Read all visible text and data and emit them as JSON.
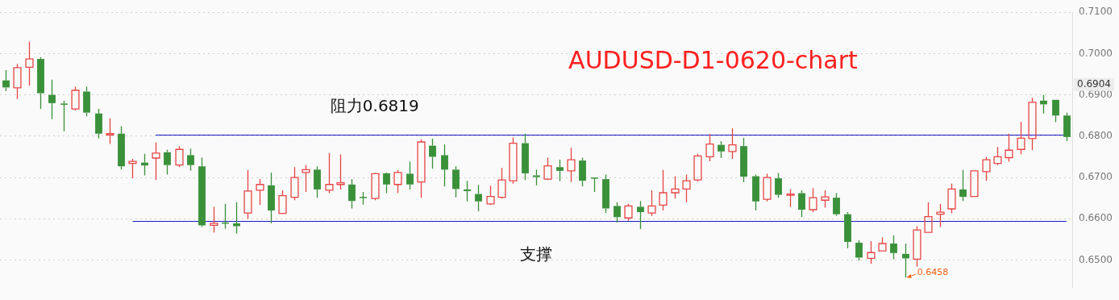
{
  "chart_data": {
    "type": "candlestick",
    "title": "AUDUSD-D1-0620-chart",
    "categories": [
      null,
      null,
      null,
      null,
      null,
      null,
      null,
      null,
      null,
      null,
      null,
      null,
      null,
      null,
      null,
      null,
      null,
      null,
      null,
      null,
      null,
      null,
      null,
      null,
      null,
      null,
      null,
      null,
      null,
      null,
      null,
      null,
      null,
      null,
      null,
      null,
      null,
      null,
      null,
      null,
      null,
      null,
      null,
      null,
      null,
      null,
      null,
      null,
      null,
      null,
      null,
      null,
      null,
      null,
      null,
      null,
      null,
      null,
      null,
      null,
      null,
      null,
      null,
      null,
      null,
      null,
      null,
      null,
      null,
      null,
      null,
      null,
      null,
      null,
      null,
      null,
      null,
      null,
      null,
      null,
      null,
      null,
      null,
      null,
      null,
      null,
      null,
      null,
      null,
      null,
      null,
      null,
      null
    ],
    "ohlc": [
      [
        0.6935,
        0.696,
        0.6909,
        0.6918
      ],
      [
        0.6917,
        0.6975,
        0.689,
        0.6966
      ],
      [
        0.6967,
        0.7029,
        0.6922,
        0.6987
      ],
      [
        0.6987,
        0.6991,
        0.6866,
        0.6904
      ],
      [
        0.69,
        0.6937,
        0.6841,
        0.688
      ],
      [
        0.6879,
        0.6886,
        0.6812,
        0.6878
      ],
      [
        0.6866,
        0.692,
        0.6862,
        0.6911
      ],
      [
        0.6908,
        0.692,
        0.6848,
        0.6857
      ],
      [
        0.6855,
        0.6866,
        0.6795,
        0.6806
      ],
      [
        0.6803,
        0.6843,
        0.6781,
        0.6806
      ],
      [
        0.6806,
        0.6824,
        0.6719,
        0.6727
      ],
      [
        0.6734,
        0.6745,
        0.6698,
        0.6739
      ],
      [
        0.6736,
        0.6757,
        0.6705,
        0.6729
      ],
      [
        0.6747,
        0.6785,
        0.6694,
        0.6759
      ],
      [
        0.6761,
        0.6767,
        0.6707,
        0.673
      ],
      [
        0.673,
        0.6776,
        0.6725,
        0.6768
      ],
      [
        0.6754,
        0.677,
        0.6716,
        0.673
      ],
      [
        0.6727,
        0.6748,
        0.658,
        0.6584
      ],
      [
        0.6584,
        0.6629,
        0.6567,
        0.6589
      ],
      [
        0.6591,
        0.6636,
        0.6576,
        0.659
      ],
      [
        0.6589,
        0.664,
        0.6564,
        0.6582
      ],
      [
        0.6614,
        0.6718,
        0.66,
        0.6667
      ],
      [
        0.6669,
        0.6696,
        0.6633,
        0.6683
      ],
      [
        0.6681,
        0.6712,
        0.6589,
        0.662
      ],
      [
        0.6613,
        0.6669,
        0.6613,
        0.6656
      ],
      [
        0.6652,
        0.6725,
        0.6645,
        0.67
      ],
      [
        0.6712,
        0.673,
        0.6665,
        0.6719
      ],
      [
        0.6719,
        0.6727,
        0.6651,
        0.6671
      ],
      [
        0.6669,
        0.6759,
        0.6662,
        0.6683
      ],
      [
        0.6683,
        0.6756,
        0.6671,
        0.6687
      ],
      [
        0.6683,
        0.6696,
        0.6625,
        0.6643
      ],
      [
        0.6653,
        0.6665,
        0.6634,
        0.6652
      ],
      [
        0.6649,
        0.6711,
        0.6645,
        0.6709
      ],
      [
        0.671,
        0.6712,
        0.6662,
        0.6683
      ],
      [
        0.6683,
        0.6718,
        0.6662,
        0.6712
      ],
      [
        0.6709,
        0.6738,
        0.6671,
        0.6683
      ],
      [
        0.6689,
        0.6792,
        0.6651,
        0.6786
      ],
      [
        0.6777,
        0.6794,
        0.6721,
        0.675
      ],
      [
        0.6754,
        0.678,
        0.6678,
        0.6719
      ],
      [
        0.6719,
        0.6727,
        0.6652,
        0.6672
      ],
      [
        0.6671,
        0.6692,
        0.6642,
        0.6667
      ],
      [
        0.666,
        0.6682,
        0.6618,
        0.6642
      ],
      [
        0.6636,
        0.668,
        0.6633,
        0.6654
      ],
      [
        0.6652,
        0.6723,
        0.6649,
        0.6694
      ],
      [
        0.6692,
        0.6797,
        0.6685,
        0.6783
      ],
      [
        0.6783,
        0.6806,
        0.6694,
        0.671
      ],
      [
        0.6705,
        0.6719,
        0.6681,
        0.6701
      ],
      [
        0.6696,
        0.6748,
        0.6694,
        0.6728
      ],
      [
        0.6725,
        0.6743,
        0.6691,
        0.6716
      ],
      [
        0.6716,
        0.6772,
        0.6689,
        0.6743
      ],
      [
        0.6741,
        0.6748,
        0.6678,
        0.6692
      ],
      [
        0.67,
        0.67,
        0.6665,
        0.6698
      ],
      [
        0.6696,
        0.6707,
        0.6614,
        0.6625
      ],
      [
        0.6631,
        0.664,
        0.6591,
        0.6604
      ],
      [
        0.6602,
        0.6636,
        0.6595,
        0.6631
      ],
      [
        0.6629,
        0.6643,
        0.6575,
        0.6616
      ],
      [
        0.6614,
        0.6669,
        0.6607,
        0.6631
      ],
      [
        0.6633,
        0.6718,
        0.662,
        0.6663
      ],
      [
        0.6663,
        0.6703,
        0.6649,
        0.6672
      ],
      [
        0.6672,
        0.6707,
        0.664,
        0.6692
      ],
      [
        0.6694,
        0.6757,
        0.669,
        0.6752
      ],
      [
        0.675,
        0.6805,
        0.6739,
        0.6781
      ],
      [
        0.6779,
        0.6788,
        0.6747,
        0.6763
      ],
      [
        0.6763,
        0.6819,
        0.6745,
        0.6779
      ],
      [
        0.6776,
        0.6796,
        0.6689,
        0.6702
      ],
      [
        0.6703,
        0.6707,
        0.662,
        0.6642
      ],
      [
        0.6647,
        0.6709,
        0.6642,
        0.67
      ],
      [
        0.6698,
        0.6711,
        0.6651,
        0.6658
      ],
      [
        0.6658,
        0.6672,
        0.6629,
        0.666
      ],
      [
        0.6662,
        0.6669,
        0.6604,
        0.6622
      ],
      [
        0.6622,
        0.6674,
        0.6616,
        0.6651
      ],
      [
        0.6645,
        0.6669,
        0.6627,
        0.6653
      ],
      [
        0.6651,
        0.6662,
        0.6607,
        0.6611
      ],
      [
        0.6611,
        0.6616,
        0.6529,
        0.6544
      ],
      [
        0.6542,
        0.6548,
        0.6499,
        0.6506
      ],
      [
        0.6504,
        0.6546,
        0.6491,
        0.6518
      ],
      [
        0.6522,
        0.6555,
        0.6522,
        0.654
      ],
      [
        0.654,
        0.656,
        0.6502,
        0.6517
      ],
      [
        0.6515,
        0.654,
        0.6458,
        0.6504
      ],
      [
        0.6502,
        0.6582,
        0.6484,
        0.6573
      ],
      [
        0.6567,
        0.664,
        0.6567,
        0.6605
      ],
      [
        0.6611,
        0.6636,
        0.658,
        0.6616
      ],
      [
        0.6624,
        0.6685,
        0.6613,
        0.6672
      ],
      [
        0.6671,
        0.6718,
        0.6643,
        0.6653
      ],
      [
        0.6654,
        0.6716,
        0.6654,
        0.6716
      ],
      [
        0.6714,
        0.675,
        0.6692,
        0.6743
      ],
      [
        0.6734,
        0.6774,
        0.673,
        0.675
      ],
      [
        0.6748,
        0.6806,
        0.6738,
        0.6766
      ],
      [
        0.6768,
        0.6835,
        0.6756,
        0.6795
      ],
      [
        0.6794,
        0.6893,
        0.6766,
        0.6882
      ],
      [
        0.6886,
        0.69,
        0.6855,
        0.6877
      ],
      [
        0.6888,
        0.6888,
        0.6834,
        0.685
      ],
      [
        0.685,
        0.6857,
        0.6788,
        0.6798
      ]
    ],
    "ylim": [
      0.6433,
      0.71
    ],
    "yticks": [
      {
        "value": 0.65,
        "label": "0.6500"
      },
      {
        "value": 0.66,
        "label": "0.6600"
      },
      {
        "value": 0.67,
        "label": "0.6700"
      },
      {
        "value": 0.68,
        "label": "0.6800"
      },
      {
        "value": 0.69,
        "label": "0.6900"
      },
      {
        "value": 0.7,
        "label": "0.7000"
      },
      {
        "value": 0.71,
        "label": "0.7100"
      }
    ],
    "grid": "y",
    "tick_labels": "y",
    "ref_lines": [
      {
        "axis": "y",
        "value": 0.6803,
        "label": "阻力0.6819",
        "color": "#1a1acc"
      },
      {
        "axis": "y",
        "value": 0.6594,
        "label": "支撑",
        "color": "#1a1acc"
      }
    ],
    "annotations": [
      "0.6904",
      "0.6458"
    ]
  }
}
